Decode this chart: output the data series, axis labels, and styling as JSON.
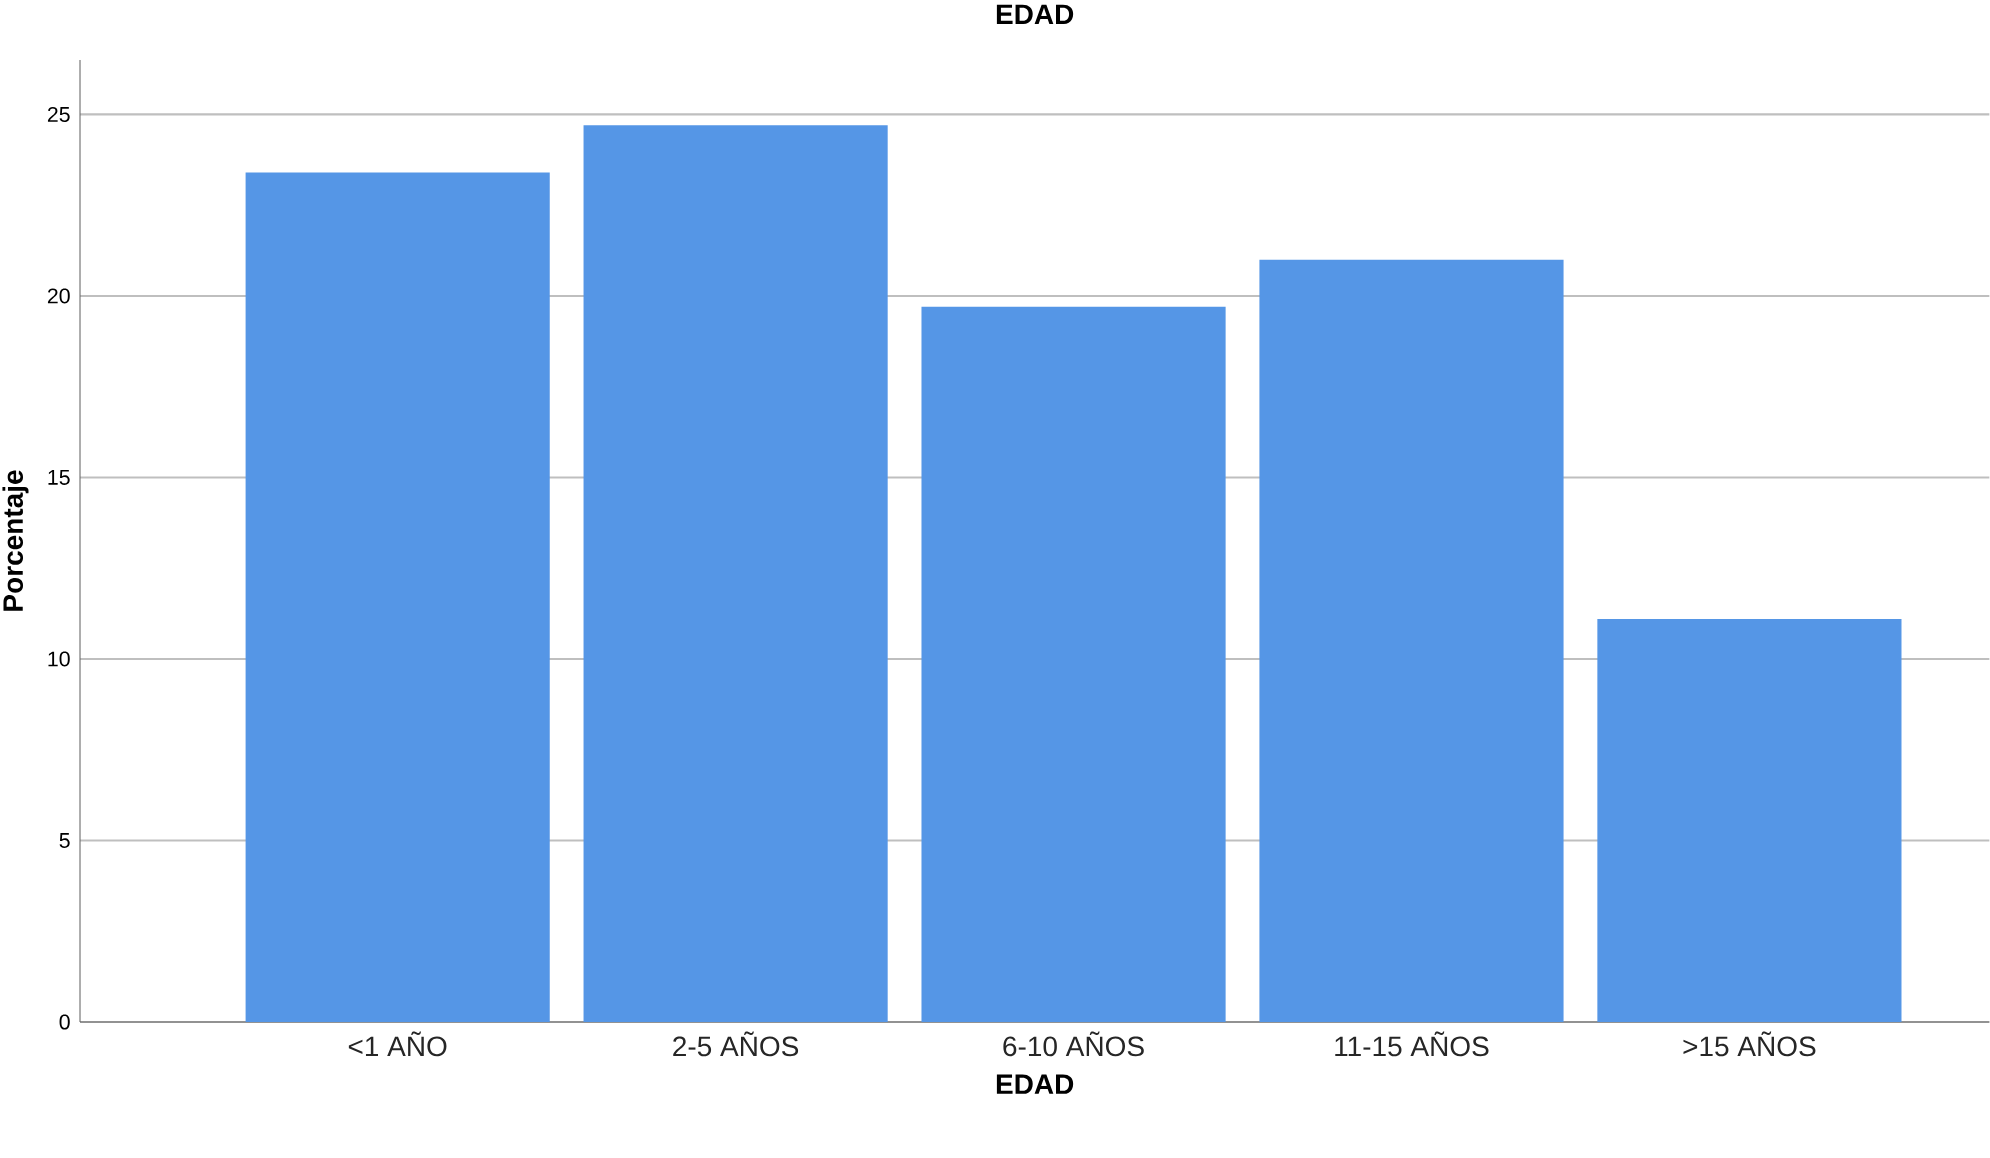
{
  "chart_data": {
    "type": "bar",
    "title": "EDAD",
    "xlabel": "EDAD",
    "ylabel": "Porcentaje",
    "categories": [
      "<1 AÑO",
      "2-5 AÑOS",
      "6-10 AÑOS",
      "11-15 AÑOS",
      ">15 AÑOS"
    ],
    "values": [
      23.4,
      24.7,
      19.7,
      21.0,
      11.1
    ],
    "color": "#5596e6",
    "ylim": [
      0,
      26.5
    ],
    "yticks": [
      0,
      5,
      10,
      15,
      20,
      25
    ],
    "grid": "y"
  }
}
